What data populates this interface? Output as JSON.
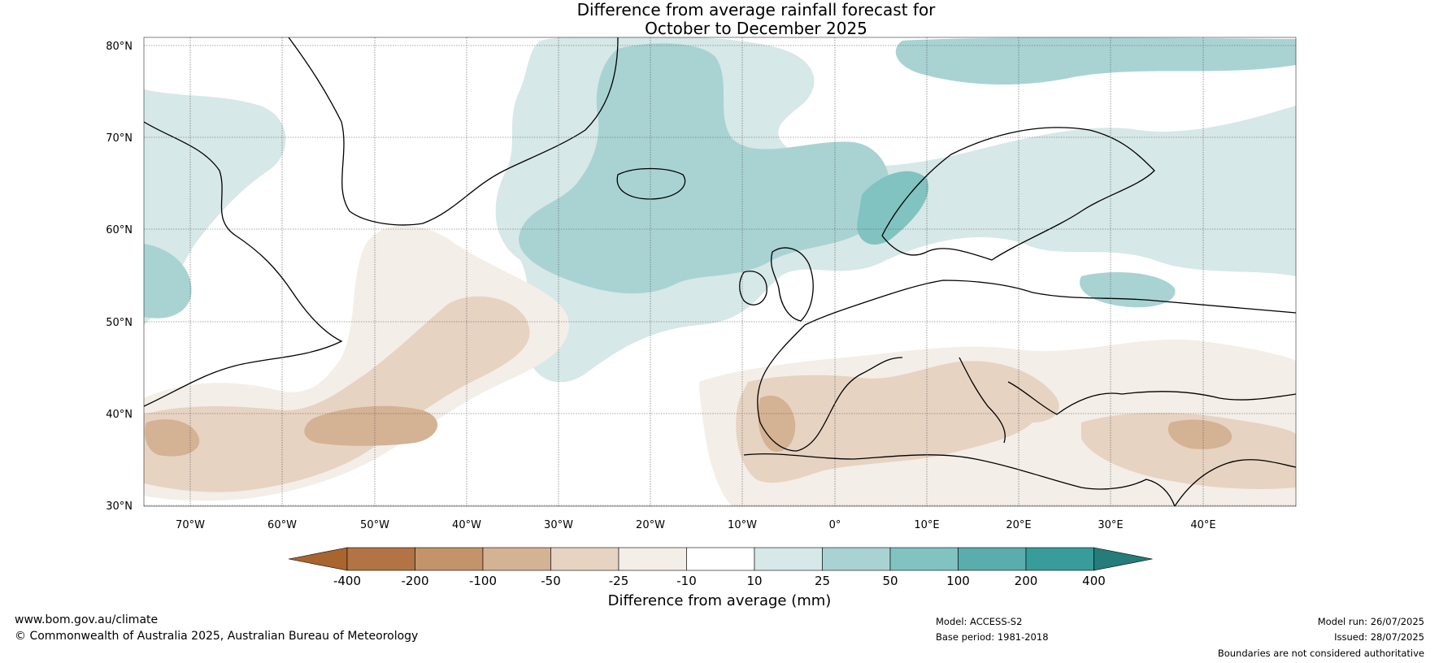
{
  "title": [
    "Difference from average rainfall forecast for",
    "October to December 2025"
  ],
  "lat_labels": [
    "80°N",
    "70°N",
    "60°N",
    "50°N",
    "40°N",
    "30°N"
  ],
  "lon_labels": [
    "70°W",
    "60°W",
    "50°W",
    "40°W",
    "30°W",
    "20°W",
    "10°W",
    "0°",
    "10°E",
    "20°E",
    "30°E",
    "40°E"
  ],
  "legend": {
    "label": "Difference from average (mm)",
    "ticks": [
      "-400",
      "-200",
      "-100",
      "-50",
      "-25",
      "-10",
      "10",
      "25",
      "50",
      "100",
      "200",
      "400"
    ],
    "colors": [
      "#a9652e",
      "#b27444",
      "#c4936a",
      "#d4b294",
      "#e7d3c2",
      "#f4eee8",
      "#ffffff",
      "#d6e8e7",
      "#a9d3d3",
      "#80c3c1",
      "#5aadac",
      "#379c9a",
      "#257c7a"
    ]
  },
  "footer": {
    "website": "www.bom.gov.au/climate",
    "copyright": "© Commonwealth of Australia 2025, Australian Bureau of Meteorology",
    "model": "Model: ACCESS-S2",
    "base_period": "Base period: 1981-2018",
    "model_run": "Model run: 26/07/2025",
    "issued": "Issued: 28/07/2025",
    "disclaimer": "Boundaries are not considered authoritative"
  }
}
